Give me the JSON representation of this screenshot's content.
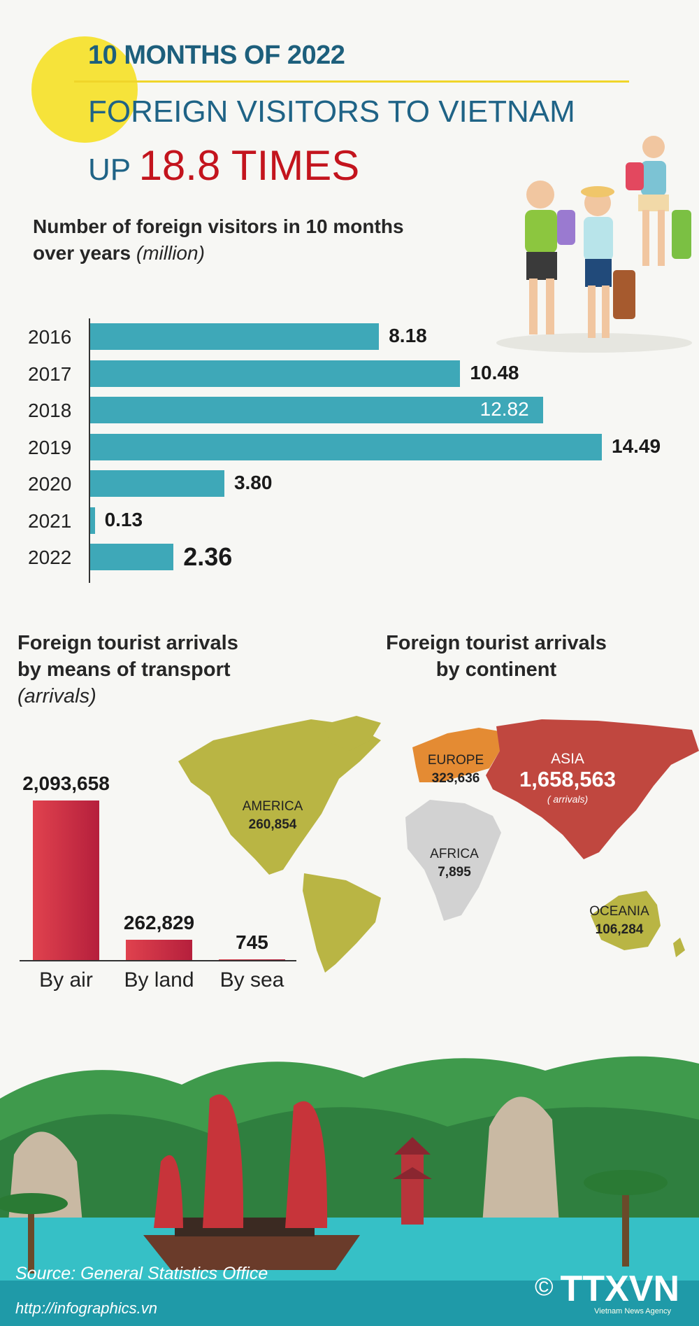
{
  "header": {
    "kicker": "10 MONTHS OF 2022",
    "title_line1": "FOREIGN VISITORS TO VIETNAM",
    "title_line2_prefix": "UP ",
    "title_line2_highlight": "18.8 TIMES"
  },
  "visitors_chart": {
    "subtitle_line1": "Number of foreign visitors in 10 months",
    "subtitle_line2": "over years ",
    "subtitle_unit": "(million)"
  },
  "transport": {
    "title_line1": "Foreign tourist arrivals",
    "title_line2": "by means of transport",
    "unit": "(arrivals)"
  },
  "continent": {
    "title_line1": "Foreign tourist arrivals",
    "title_line2": "by continent",
    "europe": {
      "name": "EUROPE",
      "value": "323,636"
    },
    "asia": {
      "name": "ASIA",
      "value": "1,658,563",
      "unit": "( arrivals)"
    },
    "america": {
      "name": "AMERICA",
      "value": "260,854"
    },
    "africa": {
      "name": "AFRICA",
      "value": "7,895"
    },
    "oceania": {
      "name": "OCEANIA",
      "value": "106,284"
    }
  },
  "footer": {
    "source": "Source:  General Statistics Office",
    "url": "http://infographics.vn",
    "copyright": "©",
    "logo": "TTXVN",
    "logo_sub": "Vietnam News Agency"
  },
  "colors": {
    "bar": "#3ea8b8",
    "transport_bar": "#c92a45",
    "highlight": "#c3141d",
    "title_blue": "#1f6386",
    "america": "#b9b544",
    "europe": "#e48b33",
    "asia": "#c0473f",
    "africa": "#d2d2d2",
    "oceania": "#b9b544"
  },
  "chart_data": [
    {
      "type": "bar",
      "orientation": "horizontal",
      "categories": [
        "2016",
        "2017",
        "2018",
        "2019",
        "2020",
        "2021",
        "2022"
      ],
      "values": [
        8.18,
        10.48,
        12.82,
        14.49,
        3.8,
        0.13,
        2.36
      ],
      "labels": [
        "8.18",
        "10.48",
        "12.82",
        "14.49",
        "3.80",
        "0.13",
        "2.36"
      ],
      "title": "Number of foreign visitors in 10 months over years (million)",
      "xlim": [
        0,
        14.49
      ]
    },
    {
      "type": "bar",
      "categories": [
        "By air",
        "By land",
        "By sea"
      ],
      "values": [
        2093658,
        262829,
        745
      ],
      "labels": [
        "2,093,658",
        "262,829",
        "745"
      ],
      "title": "Foreign tourist arrivals by means of transport",
      "ylabel": "(arrivals)"
    }
  ]
}
